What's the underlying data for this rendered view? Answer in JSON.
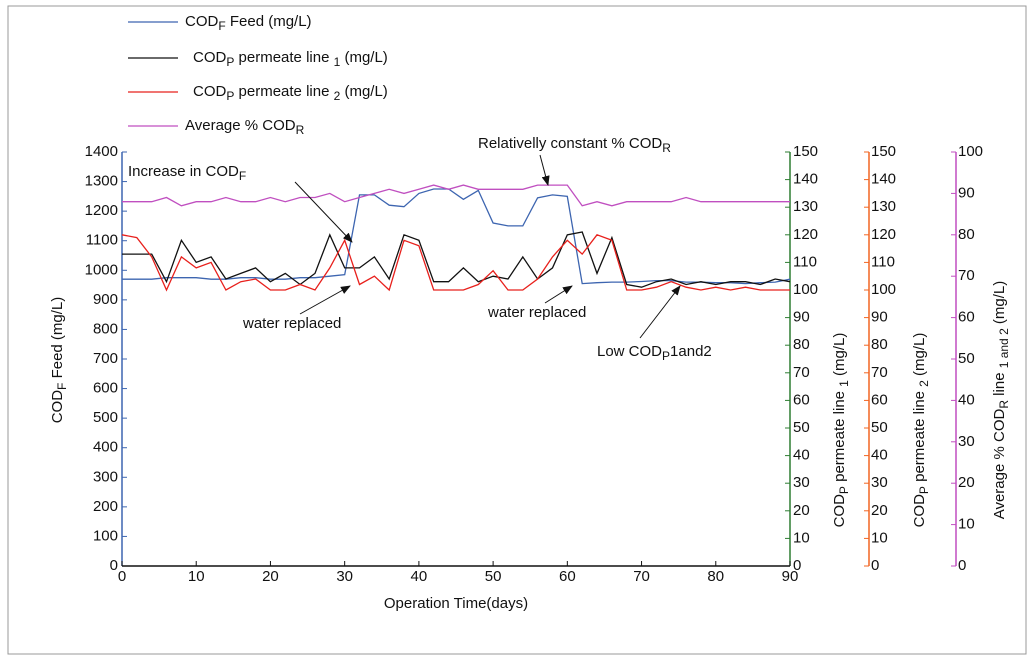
{
  "chart_data": {
    "type": "line",
    "xlabel": "Operation Time(days)",
    "ylabel": [
      "COD",
      "F",
      " Feed (mg/L)"
    ],
    "y2label": [
      "COD",
      "P",
      " permeate line ",
      "1",
      " (mg/L)"
    ],
    "y3label": [
      "COD",
      "P",
      " permeate line ",
      "2",
      " (mg/L)"
    ],
    "y4label": [
      "Average % COD",
      "R",
      " line ",
      "1 and 2",
      " (mg/L)"
    ],
    "x": [
      0,
      2,
      4,
      6,
      8,
      10,
      12,
      14,
      16,
      18,
      20,
      22,
      24,
      26,
      28,
      30,
      32,
      34,
      36,
      38,
      40,
      42,
      44,
      46,
      48,
      50,
      52,
      54,
      56,
      58,
      60,
      62,
      64,
      66,
      68,
      70,
      72,
      74,
      76,
      78,
      80,
      82,
      84,
      86,
      88,
      90
    ],
    "xlim": [
      0,
      90
    ],
    "xticks": [
      0,
      10,
      20,
      30,
      40,
      50,
      60,
      70,
      80,
      90
    ],
    "ylim": [
      0,
      1400
    ],
    "yticks": [
      0,
      100,
      200,
      300,
      400,
      500,
      600,
      700,
      800,
      900,
      1000,
      1100,
      1200,
      1300,
      1400
    ],
    "y2lim": [
      0,
      150
    ],
    "y2ticks": [
      0,
      10,
      20,
      30,
      40,
      50,
      60,
      70,
      80,
      90,
      100,
      110,
      120,
      130,
      140,
      150
    ],
    "y3lim": [
      0,
      150
    ],
    "y3ticks": [
      0,
      10,
      20,
      30,
      40,
      50,
      60,
      70,
      80,
      90,
      100,
      110,
      120,
      130,
      140,
      150
    ],
    "y4lim": [
      0,
      100
    ],
    "y4ticks": [
      0,
      10,
      20,
      30,
      40,
      50,
      60,
      70,
      80,
      90,
      100
    ],
    "series": [
      {
        "name": [
          "COD",
          "F",
          " Feed (mg/L)"
        ],
        "color": "#3d65b0",
        "axis": "y",
        "values": [
          970,
          970,
          970,
          975,
          975,
          975,
          970,
          970,
          975,
          975,
          970,
          970,
          975,
          975,
          980,
          985,
          1255,
          1255,
          1220,
          1215,
          1260,
          1275,
          1275,
          1240,
          1270,
          1160,
          1150,
          1150,
          1245,
          1255,
          1250,
          955,
          958,
          960,
          960,
          962,
          965,
          965,
          960,
          960,
          958,
          958,
          955,
          958,
          960,
          970
        ]
      },
      {
        "name": [
          "COD",
          "P",
          " permeate line ",
          "1",
          " (mg/L)"
        ],
        "color": "#111111",
        "axis": "y2",
        "values": [
          113,
          113,
          113,
          103,
          118,
          110,
          112,
          104,
          106,
          108,
          103,
          106,
          102,
          106,
          120,
          108,
          108,
          112,
          104,
          120,
          118,
          103,
          103,
          108,
          103,
          105,
          104,
          112,
          104,
          108,
          120,
          121,
          106,
          119,
          102,
          101,
          103,
          104,
          102,
          103,
          102,
          103,
          103,
          102,
          104,
          103
        ]
      },
      {
        "name": [
          "COD",
          "P",
          " permeate line ",
          "2",
          " (mg/L)"
        ],
        "color": "#e8201c",
        "axis": "y3",
        "values": [
          120,
          119,
          112,
          100,
          112,
          108,
          110,
          100,
          103,
          104,
          100,
          100,
          102,
          100,
          108,
          118,
          102,
          105,
          100,
          118,
          116,
          100,
          100,
          100,
          102,
          107,
          100,
          100,
          104,
          112,
          118,
          113,
          120,
          118,
          100,
          100,
          101,
          103,
          101,
          100,
          101,
          100,
          101,
          100,
          100,
          100
        ]
      },
      {
        "name": [
          "Average % COD",
          "R"
        ],
        "color": "#c04fc0",
        "axis": "y4",
        "values": [
          88,
          88,
          88,
          89,
          87,
          88,
          88,
          89,
          88,
          88,
          89,
          88,
          89,
          89,
          90,
          88,
          89,
          90,
          91,
          90,
          91,
          92,
          91,
          92,
          91,
          91,
          91,
          91,
          92,
          92,
          92,
          87,
          88,
          87,
          88,
          88,
          88,
          88,
          89,
          88,
          88,
          88,
          88,
          88,
          88,
          88
        ]
      }
    ],
    "annotations": [
      {
        "text": [
          "Increase in COD",
          "F"
        ]
      },
      {
        "text": [
          "Relativelly constant % COD",
          "R"
        ]
      },
      {
        "text": [
          "water replaced"
        ]
      },
      {
        "text": [
          "water replaced"
        ]
      },
      {
        "text": [
          "Low COD",
          "P",
          "1and2"
        ]
      }
    ]
  }
}
